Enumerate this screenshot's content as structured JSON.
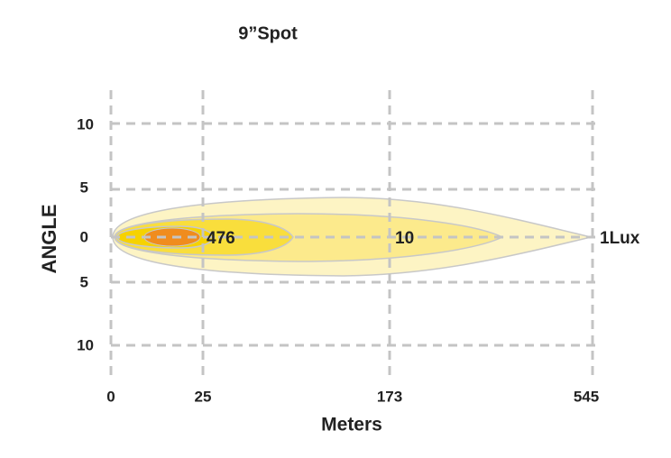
{
  "title": "9”Spot",
  "y_axis": {
    "label": "ANGLE",
    "ticks": [
      "10",
      "5",
      "0",
      "5",
      "10"
    ]
  },
  "x_axis": {
    "label": "Meters",
    "ticks": [
      "0",
      "25",
      "173",
      "545"
    ]
  },
  "contour_labels": [
    "476",
    "10",
    "1Lux"
  ]
}
